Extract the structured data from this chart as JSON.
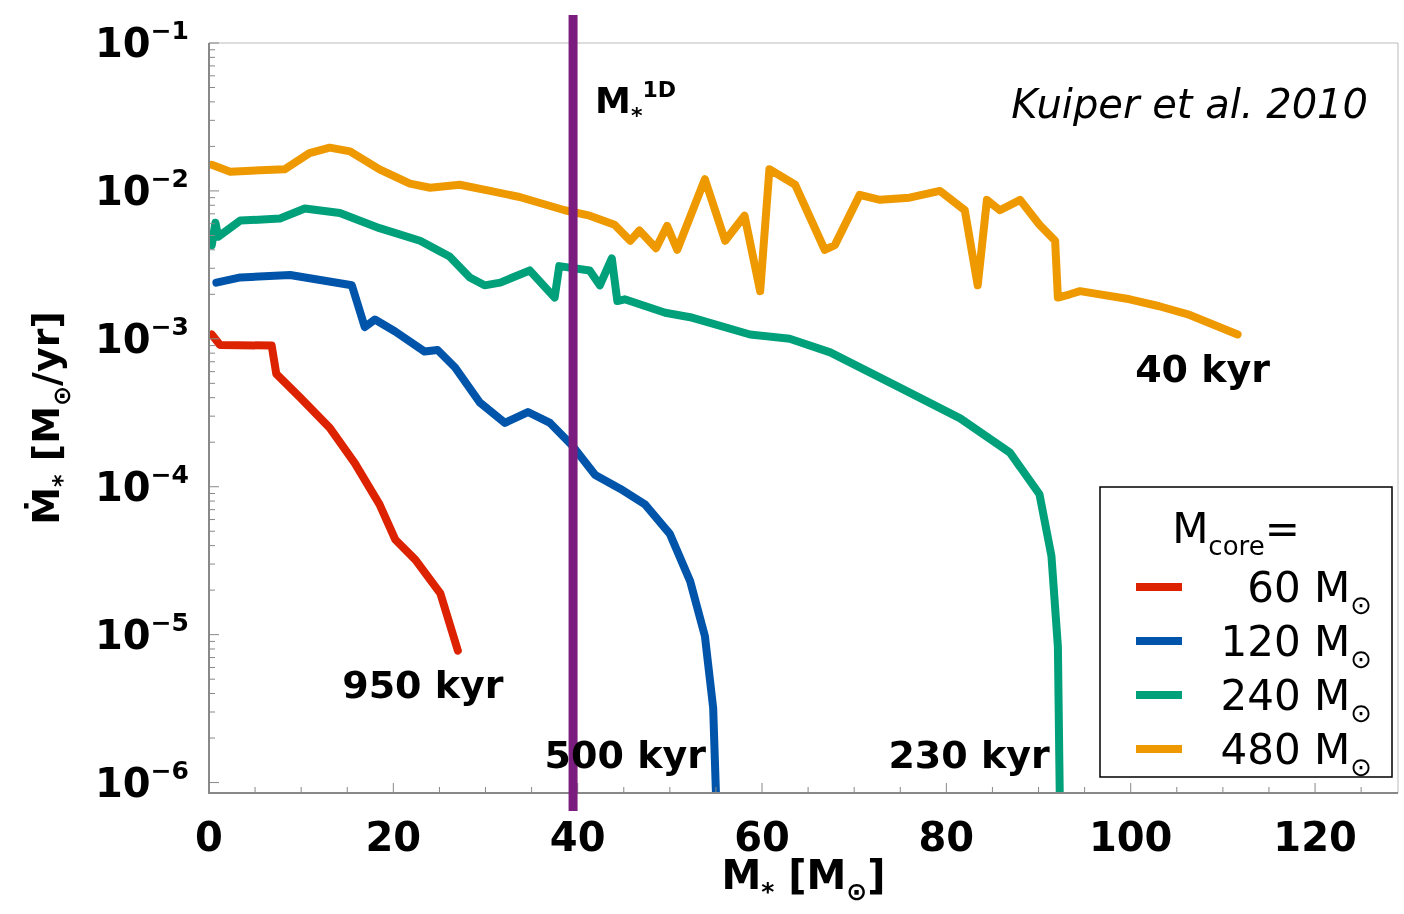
{
  "chart_data": {
    "type": "line",
    "xlabel": "M$_{*}$ [M$_{⊙}$]",
    "ylabel": "Ṁ$_{*}$ [M$_{⊙}$/yr]",
    "legend_title": "M$_{core}$=",
    "legend": "bottom right",
    "log": "y",
    "xlim": [
      0,
      129
    ],
    "xticks": [
      0,
      {
        "value": 5,
        "label": null
      },
      {
        "value": 10,
        "label": null
      },
      {
        "value": 15,
        "label": null
      },
      20,
      {
        "value": 25,
        "label": null
      },
      {
        "value": 30,
        "label": null
      },
      {
        "value": 35,
        "label": null
      },
      40,
      {
        "value": 45,
        "label": null
      },
      {
        "value": 50,
        "label": null
      },
      {
        "value": 55,
        "label": null
      },
      60,
      {
        "value": 65,
        "label": null
      },
      {
        "value": 70,
        "label": null
      },
      {
        "value": 75,
        "label": null
      },
      80,
      {
        "value": 85,
        "label": null
      },
      {
        "value": 90,
        "label": null
      },
      {
        "value": 95,
        "label": null
      },
      100,
      {
        "value": 105,
        "label": null
      },
      {
        "value": 110,
        "label": null
      },
      {
        "value": 115,
        "label": null
      },
      120,
      {
        "value": 125,
        "label": null
      }
    ],
    "ylim": [
      8.5e-07,
      0.1
    ],
    "yticks": [
      {
        "value": 1e-06,
        "label": "10$^{−6}$"
      },
      {
        "value": 2e-06,
        "label": null
      },
      {
        "value": 3e-06,
        "label": null
      },
      {
        "value": 4e-06,
        "label": null
      },
      {
        "value": 5e-06,
        "label": null
      },
      {
        "value": 6e-06,
        "label": null
      },
      {
        "value": 7e-06,
        "label": null
      },
      {
        "value": 8e-06,
        "label": null
      },
      {
        "value": 9e-06,
        "label": null
      },
      {
        "value": 1e-05,
        "label": "10$^{−5}$"
      },
      {
        "value": 2e-05,
        "label": null
      },
      {
        "value": 3e-05,
        "label": null
      },
      {
        "value": 4e-05,
        "label": null
      },
      {
        "value": 5e-05,
        "label": null
      },
      {
        "value": 6e-05,
        "label": null
      },
      {
        "value": 7e-05,
        "label": null
      },
      {
        "value": 8e-05,
        "label": null
      },
      {
        "value": 9e-05,
        "label": null
      },
      {
        "value": 0.0001,
        "label": "10$^{−4}$"
      },
      {
        "value": 0.0002,
        "label": null
      },
      {
        "value": 0.0003,
        "label": null
      },
      {
        "value": 0.0004,
        "label": null
      },
      {
        "value": 0.0005,
        "label": null
      },
      {
        "value": 0.0006,
        "label": null
      },
      {
        "value": 0.0007,
        "label": null
      },
      {
        "value": 0.0008,
        "label": null
      },
      {
        "value": 0.0009,
        "label": null
      },
      {
        "value": 0.001,
        "label": "10$^{−3}$"
      },
      {
        "value": 0.002,
        "label": null
      },
      {
        "value": 0.003,
        "label": null
      },
      {
        "value": 0.004,
        "label": null
      },
      {
        "value": 0.005,
        "label": null
      },
      {
        "value": 0.006,
        "label": null
      },
      {
        "value": 0.007,
        "label": null
      },
      {
        "value": 0.008,
        "label": null
      },
      {
        "value": 0.009,
        "label": null
      },
      {
        "value": 0.01,
        "label": "10$^{−2}$"
      },
      {
        "value": 0.02,
        "label": null
      },
      {
        "value": 0.03,
        "label": null
      },
      {
        "value": 0.04,
        "label": null
      },
      {
        "value": 0.05,
        "label": null
      },
      {
        "value": 0.06,
        "label": null
      },
      {
        "value": 0.07,
        "label": null
      },
      {
        "value": 0.08,
        "label": null
      },
      {
        "value": 0.09,
        "label": null
      },
      {
        "value": 0.1,
        "label": "10$^{−1}$"
      }
    ],
    "series": [
      {
        "name": "60 M$_{⊙}$",
        "color": "#dd2200",
        "x": [
          0.3,
          1.2,
          6.8,
          7.3,
          9.9,
          13.1,
          15.8,
          18.5,
          20.2,
          22.4,
          25.1,
          27
        ],
        "values": [
          0.00107,
          0.00091,
          0.0009,
          0.00058,
          0.0004,
          0.00025,
          0.000145,
          7.6e-05,
          4.4e-05,
          3.2e-05,
          1.9e-05,
          7.8e-06
        ]
      },
      {
        "name": "120 M$_{⊙}$",
        "color": "#0055aa",
        "x": [
          0.8,
          3.4,
          8.8,
          15.5,
          16.9,
          18,
          20.2,
          23.4,
          24.8,
          26.7,
          29.4,
          32.1,
          34.6,
          37,
          39.4,
          41.9,
          44.6,
          47.3,
          50,
          52.2,
          53.8,
          54.7,
          55
        ],
        "values": [
          0.0024,
          0.0026,
          0.0027,
          0.0023,
          0.0012,
          0.00135,
          0.00112,
          0.00082,
          0.00084,
          0.00064,
          0.00037,
          0.00027,
          0.00032,
          0.00027,
          0.00019,
          0.00012,
          9.7e-05,
          7.6e-05,
          4.8e-05,
          2.3e-05,
          9.8e-06,
          3.2e-06,
          8.5e-07
        ]
      },
      {
        "name": "240 M$_{⊙}$",
        "color": "#00a07a",
        "x": [
          0.3,
          0.7,
          1,
          3.4,
          7.7,
          10.4,
          14.2,
          18.5,
          22.9,
          26.1,
          28.3,
          29.9,
          31.6,
          34.8,
          37.5,
          38,
          41.3,
          42.4,
          43.7,
          44.3,
          45.1,
          49.5,
          52.2,
          58.7,
          63,
          67.4,
          74.9,
          81.5,
          86.9,
          90.1,
          91.4,
          92.1,
          92.3
        ],
        "values": [
          0.0043,
          0.0061,
          0.0049,
          0.0063,
          0.0065,
          0.0076,
          0.0071,
          0.0056,
          0.0046,
          0.0036,
          0.0026,
          0.0023,
          0.0024,
          0.0029,
          0.0019,
          0.0031,
          0.0029,
          0.0023,
          0.0035,
          0.0018,
          0.00185,
          0.0015,
          0.0014,
          0.00107,
          0.001,
          0.00081,
          0.00047,
          0.00029,
          0.00017,
          8.9e-05,
          3.4e-05,
          8.3e-06,
          8.5e-07
        ]
      },
      {
        "name": "480 M$_{⊙}$",
        "color": "#ee9900",
        "x": [
          0.3,
          2.3,
          8.2,
          10.9,
          13.1,
          15.3,
          18.5,
          21.8,
          24,
          27.2,
          30.5,
          33.7,
          38.6,
          41.3,
          44,
          45.7,
          46.7,
          48.5,
          49.7,
          50.8,
          53.8,
          56,
          58.1,
          59.8,
          60.8,
          63.6,
          66.8,
          67.9,
          70.6,
          72.8,
          76,
          79.3,
          82,
          83.4,
          84.4,
          85.8,
          88,
          90.1,
          91.8,
          92.1,
          93.4,
          94.5,
          99.9,
          103.1,
          106.4,
          111.6
        ],
        "values": [
          0.015,
          0.0135,
          0.014,
          0.018,
          0.0196,
          0.0185,
          0.014,
          0.0112,
          0.0105,
          0.011,
          0.01,
          0.0091,
          0.0074,
          0.0068,
          0.0059,
          0.0046,
          0.0054,
          0.0041,
          0.0058,
          0.004,
          0.012,
          0.0046,
          0.0068,
          0.0021,
          0.014,
          0.011,
          0.004,
          0.0043,
          0.0094,
          0.0087,
          0.009,
          0.01,
          0.0074,
          0.0023,
          0.0087,
          0.0074,
          0.0087,
          0.0059,
          0.0046,
          0.0019,
          0.002,
          0.0021,
          0.00185,
          0.00166,
          0.00145,
          0.00107
        ]
      }
    ],
    "ref_lines": [
      {
        "axis": "x",
        "value": 39.5,
        "label": "M$_{*}$$^{1D}$",
        "color": "#7b1d7e"
      }
    ],
    "annotations": [
      "Kuiper et al. 2010",
      {
        "text": "950 kyr",
        "x": 27,
        "y": 7.8e-06
      },
      {
        "text": "500 kyr",
        "x": 55,
        "y": 8.5e-07
      },
      {
        "text": "230 kyr",
        "x": 92.3,
        "y": 8.5e-07
      },
      {
        "text": "40 kyr",
        "x": 111.6,
        "y": 0.00107
      }
    ]
  }
}
